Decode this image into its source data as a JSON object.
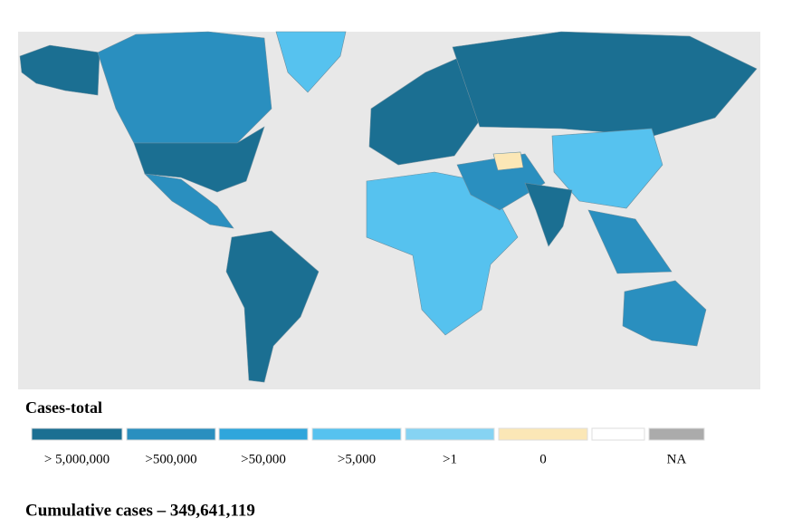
{
  "legend": {
    "title": "Cases-total",
    "items": [
      {
        "label": "> 5,000,000",
        "color": "#1b6f92"
      },
      {
        "label": ">500,000",
        "color": "#2a8fbf"
      },
      {
        "label": ">50,000",
        "color": "#2fa6dc"
      },
      {
        "label": ">5,000",
        "color": "#56c2ef"
      },
      {
        "label": ">1",
        "color": "#86d3f3"
      },
      {
        "label": "0",
        "color": "#fbe7b6"
      },
      {
        "label": "",
        "color": "#ffffff"
      },
      {
        "label": "NA",
        "color": "#ababab"
      }
    ]
  },
  "footer": "Cumulative cases – 349,641,119"
}
